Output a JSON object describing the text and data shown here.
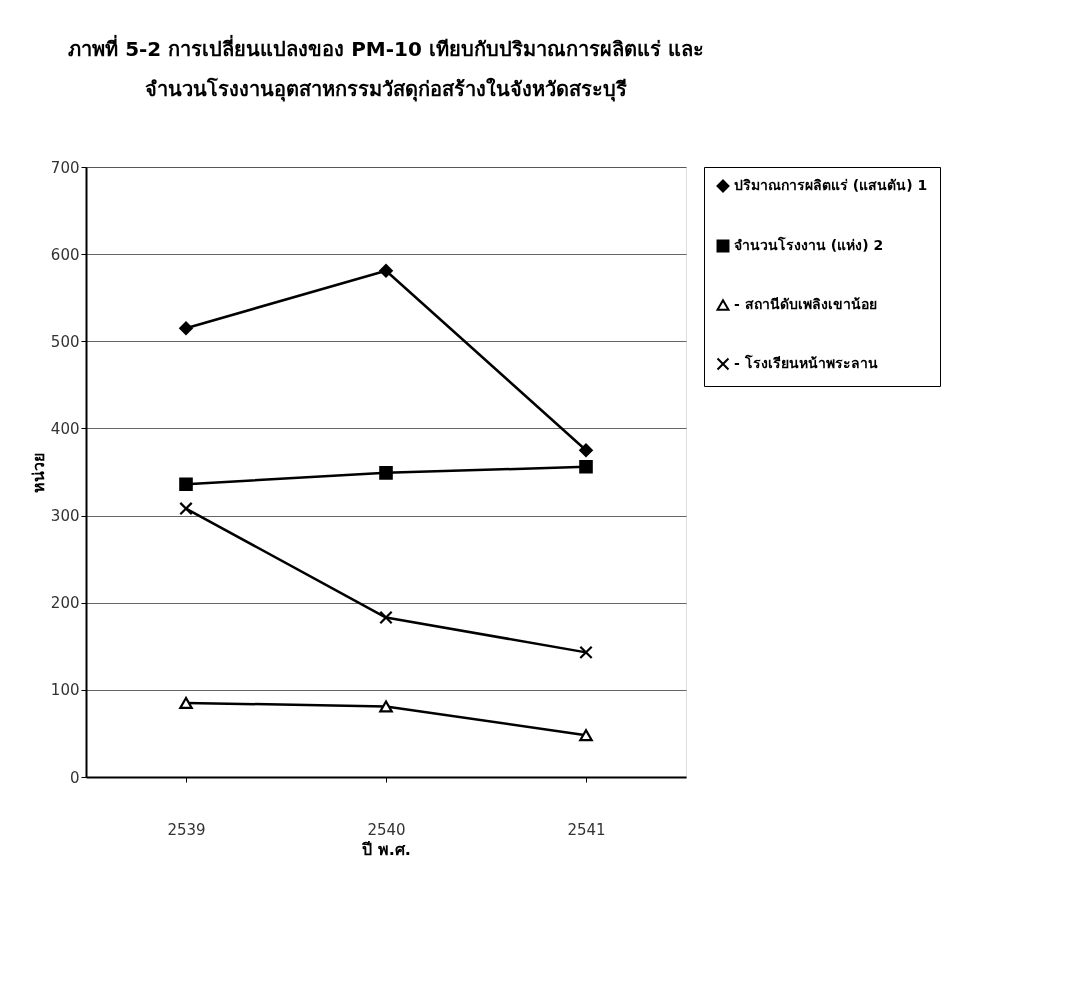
{
  "chart_data": {
    "type": "line",
    "title": "ภาพที่ 5-2 การเปลี่ยนแปลงของ PM-10 เทียบกับปริมาณการผลิตแร่ และ\nจำนวนโรงงานอุตสาหกรรมวัสดุก่อสร้างในจังหวัดสระบุรี",
    "xlabel": "ปี พ.ศ.",
    "ylabel": "หน่วย",
    "categories": [
      "2539",
      "2540",
      "2541"
    ],
    "series": [
      {
        "name": "ปริมาณการผลิตแร่ (แสนตัน) 1",
        "color": "#000000",
        "marker": "diamond",
        "values": [
          515,
          581,
          375
        ]
      },
      {
        "name": "จำนวนโรงงาน (แห่ง) 2",
        "color": "#000000",
        "marker": "square",
        "values": [
          336,
          349,
          356
        ]
      },
      {
        "name": "- สถานีดับเพลิงเขาน้อย",
        "color": "#000000",
        "marker": "triangle",
        "values": [
          85,
          81,
          48
        ]
      },
      {
        "name": "- โรงเรียนหน้าพระลาน",
        "color": "#000000",
        "marker": "cross",
        "values": [
          308,
          183,
          143
        ]
      }
    ],
    "ylim": [
      0,
      700
    ],
    "yticks": [
      0,
      100,
      200,
      300,
      400,
      500,
      600,
      700
    ],
    "grid": "y",
    "legend": "right",
    "line_style": "solid"
  }
}
